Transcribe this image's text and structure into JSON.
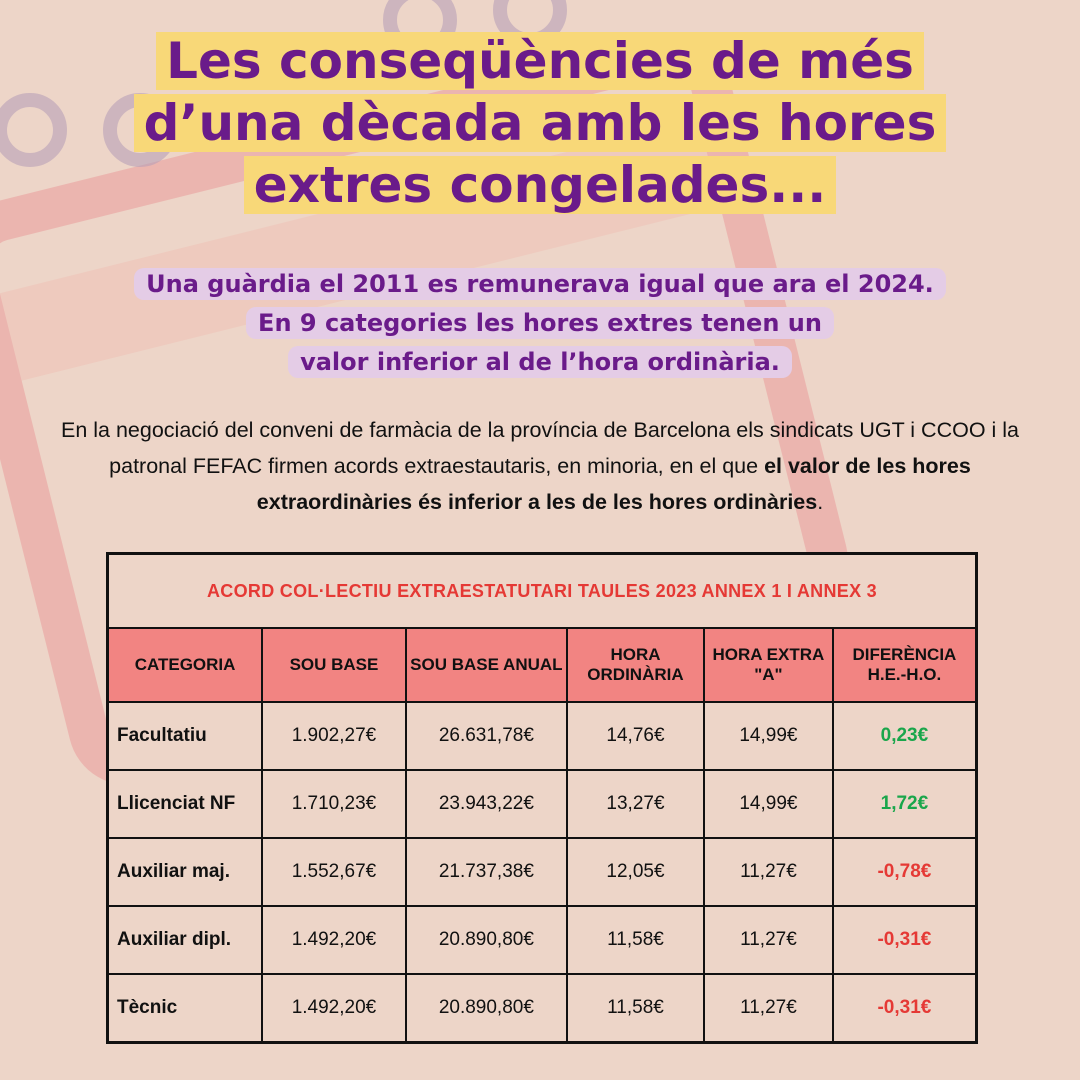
{
  "title": {
    "lines": [
      "Les conseqüències de més",
      "d’una dècada amb les hores",
      "extres congelades..."
    ]
  },
  "subtitle": {
    "lines": [
      "Una guàrdia el 2011 es remunerava igual que ara el 2024.",
      "En 9 categories les hores extres tenen un",
      "valor inferior al de l’hora ordinària."
    ]
  },
  "paragraph": {
    "text": "En la negociació del conveni de farmàcia de la província de Barcelona els sindicats UGT i CCOO i la patronal FEFAC firmen acords extraestautaris, en minoria, en el que",
    "bold": "el valor de les hores extraordinàries és inferior a les de les hores ordinàries",
    "end": "."
  },
  "table": {
    "title": "ACORD COL·LECTIU EXTRAESTATUTARI TAULES 2023 ANNEX 1 I ANNEX 3",
    "headers": [
      "CATEGORIA",
      "SOU BASE",
      "SOU BASE ANUAL",
      "HORA ORDINÀRIA",
      "HORA EXTRA  \"A\"",
      "DIFERÈNCIA H.E.-H.O."
    ],
    "rows": [
      [
        "Facultatiu",
        "1.902,27€",
        "26.631,78€",
        "14,76€",
        "14,99€",
        "0,23€"
      ],
      [
        "Llicenciat NF",
        "1.710,23€",
        "23.943,22€",
        "13,27€",
        "14,99€",
        "1,72€"
      ],
      [
        "Auxiliar maj.",
        "1.552,67€",
        "21.737,38€",
        "12,05€",
        "11,27€",
        "-0,78€"
      ],
      [
        "Auxiliar dipl.",
        "1.492,20€",
        "20.890,80€",
        "11,58€",
        "11,27€",
        "-0,31€"
      ],
      [
        "Tècnic",
        "1.492,20€",
        "20.890,80€",
        "11,58€",
        "11,27€",
        "-0,31€"
      ]
    ]
  }
}
